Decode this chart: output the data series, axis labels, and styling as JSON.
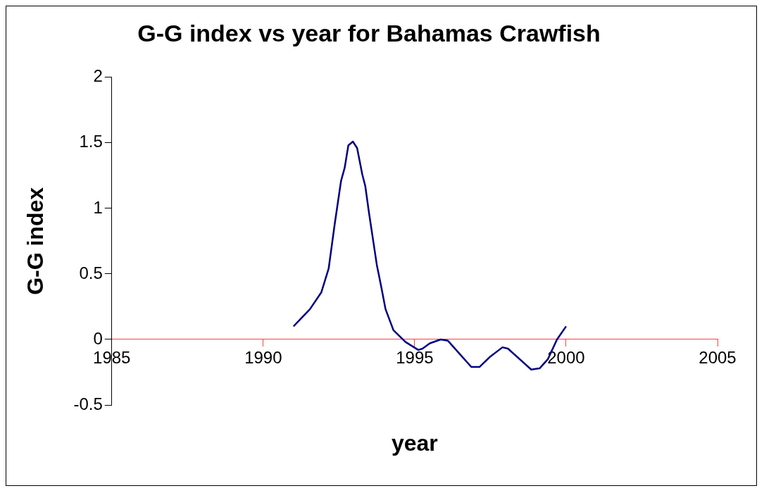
{
  "chart_data": {
    "type": "line",
    "title": "G-G index vs year for Bahamas Crawfish",
    "xlabel": "year",
    "ylabel": "G-G index",
    "x": [
      1991.0,
      1991.54,
      1991.92,
      1992.16,
      1992.36,
      1992.57,
      1992.69,
      1992.81,
      1992.96,
      1993.1,
      1993.27,
      1993.37,
      1993.49,
      1993.75,
      1993.89,
      1994.04,
      1994.3,
      1994.7,
      1995.12,
      1995.26,
      1995.5,
      1995.86,
      1996.1,
      1996.87,
      1997.14,
      1997.5,
      1997.9,
      1998.08,
      1998.85,
      1999.13,
      1999.4,
      1999.7,
      2000.0
    ],
    "series": [
      {
        "color": "#000080",
        "values": [
          0.1,
          0.23,
          0.36,
          0.54,
          0.88,
          1.21,
          1.31,
          1.48,
          1.51,
          1.46,
          1.26,
          1.17,
          0.97,
          0.57,
          0.41,
          0.23,
          0.07,
          -0.02,
          -0.08,
          -0.07,
          -0.03,
          0.0,
          -0.01,
          -0.21,
          -0.21,
          -0.13,
          -0.06,
          -0.07,
          -0.23,
          -0.22,
          -0.15,
          0.0,
          0.1
        ]
      }
    ],
    "xlim": [
      1985,
      2005
    ],
    "xticks": [
      1985,
      1990,
      1995,
      2000,
      2005
    ],
    "ylim": [
      -0.5,
      2
    ],
    "yticks": [
      -0.5,
      0,
      0.5,
      1,
      1.5,
      2
    ],
    "grid": false,
    "legend": false,
    "marker": "none",
    "line_style": "solid"
  }
}
